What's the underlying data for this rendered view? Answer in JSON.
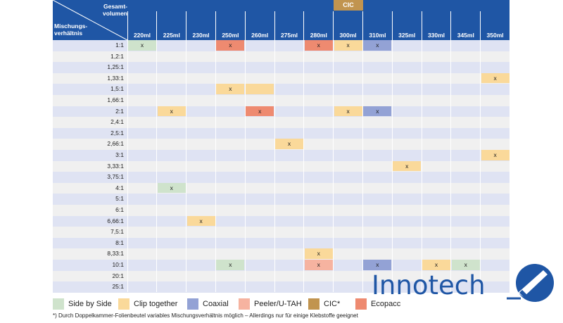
{
  "header": {
    "total_volume_line1": "Gesamt-",
    "total_volume_line2": "volumen",
    "ratio_line1": "Mischungs-",
    "ratio_line2": "verhältnis",
    "cic_label": "CIC"
  },
  "volumes": [
    "220ml",
    "225ml",
    "230ml",
    "250ml",
    "260ml",
    "275ml",
    "280ml",
    "300ml",
    "310ml",
    "325ml",
    "330ml",
    "345ml",
    "350ml"
  ],
  "colors": {
    "header": "#1f56a5",
    "row_even": "#dfe3f3",
    "row_odd": "#f0f0f0",
    "side_by_side": "#cfe3cc",
    "clip_together": "#fad99a",
    "coaxial": "#93a2d5",
    "peeler": "#f6b3a0",
    "cic": "#c1944f",
    "ecopacc": "#ee8a70"
  },
  "rows": [
    {
      "ratio": "1:1",
      "cells": [
        {
          "col": 0,
          "type": "side_by_side",
          "mark": "x"
        },
        {
          "col": 3,
          "type": "ecopacc",
          "mark": "x"
        },
        {
          "col": 6,
          "type": "ecopacc",
          "mark": "x"
        },
        {
          "col": 7,
          "type": "clip_together",
          "mark": "x"
        },
        {
          "col": 8,
          "type": "coaxial",
          "mark": "x"
        }
      ]
    },
    {
      "ratio": "1,2:1",
      "cells": []
    },
    {
      "ratio": "1,25:1",
      "cells": []
    },
    {
      "ratio": "1,33:1",
      "cells": [
        {
          "col": 12,
          "type": "clip_together",
          "mark": "x"
        }
      ]
    },
    {
      "ratio": "1,5:1",
      "cells": [
        {
          "col": 3,
          "type": "clip_together",
          "mark": "x"
        },
        {
          "col": 4,
          "type": "clip_together",
          "mark": ""
        }
      ]
    },
    {
      "ratio": "1,66:1",
      "cells": []
    },
    {
      "ratio": "2:1",
      "cells": [
        {
          "col": 1,
          "type": "clip_together",
          "mark": "x"
        },
        {
          "col": 4,
          "type": "ecopacc",
          "mark": "x"
        },
        {
          "col": 7,
          "type": "clip_together",
          "mark": "x"
        },
        {
          "col": 8,
          "type": "coaxial",
          "mark": "x"
        }
      ]
    },
    {
      "ratio": "2,4:1",
      "cells": []
    },
    {
      "ratio": "2,5:1",
      "cells": []
    },
    {
      "ratio": "2,66:1",
      "cells": [
        {
          "col": 5,
          "type": "clip_together",
          "mark": "x"
        }
      ]
    },
    {
      "ratio": "3:1",
      "cells": [
        {
          "col": 12,
          "type": "clip_together",
          "mark": "x"
        }
      ]
    },
    {
      "ratio": "3,33:1",
      "cells": [
        {
          "col": 9,
          "type": "clip_together",
          "mark": "x"
        }
      ]
    },
    {
      "ratio": "3,75:1",
      "cells": []
    },
    {
      "ratio": "4:1",
      "cells": [
        {
          "col": 1,
          "type": "side_by_side",
          "mark": "x"
        }
      ]
    },
    {
      "ratio": "5:1",
      "cells": []
    },
    {
      "ratio": "6:1",
      "cells": []
    },
    {
      "ratio": "6,66:1",
      "cells": [
        {
          "col": 2,
          "type": "clip_together",
          "mark": "x"
        }
      ]
    },
    {
      "ratio": "7,5:1",
      "cells": []
    },
    {
      "ratio": "8:1",
      "cells": []
    },
    {
      "ratio": "8,33:1",
      "cells": [
        {
          "col": 6,
          "type": "clip_together",
          "mark": "x"
        }
      ]
    },
    {
      "ratio": "10:1",
      "cells": [
        {
          "col": 3,
          "type": "side_by_side",
          "mark": "x"
        },
        {
          "col": 6,
          "type": "peeler",
          "mark": "x"
        },
        {
          "col": 8,
          "type": "coaxial",
          "mark": "x"
        },
        {
          "col": 10,
          "type": "clip_together",
          "mark": "x"
        },
        {
          "col": 11,
          "type": "side_by_side",
          "mark": "x"
        }
      ]
    },
    {
      "ratio": "20:1",
      "cells": []
    },
    {
      "ratio": "25:1",
      "cells": []
    }
  ],
  "legend": [
    {
      "label": "Side by Side",
      "type": "side_by_side"
    },
    {
      "label": "Clip together",
      "type": "clip_together"
    },
    {
      "label": "Coaxial",
      "type": "coaxial"
    },
    {
      "label": "Peeler/U-TAH",
      "type": "peeler"
    },
    {
      "label": "CIC*",
      "type": "cic"
    },
    {
      "label": "Ecopacc",
      "type": "ecopacc"
    }
  ],
  "footnote": "*) Durch Doppelkammer-Folienbeutel variables Mischungsverhältnis möglich – Allerdings nur für einige Klebstoffe geeignet",
  "logo": {
    "text": "Innotech"
  }
}
